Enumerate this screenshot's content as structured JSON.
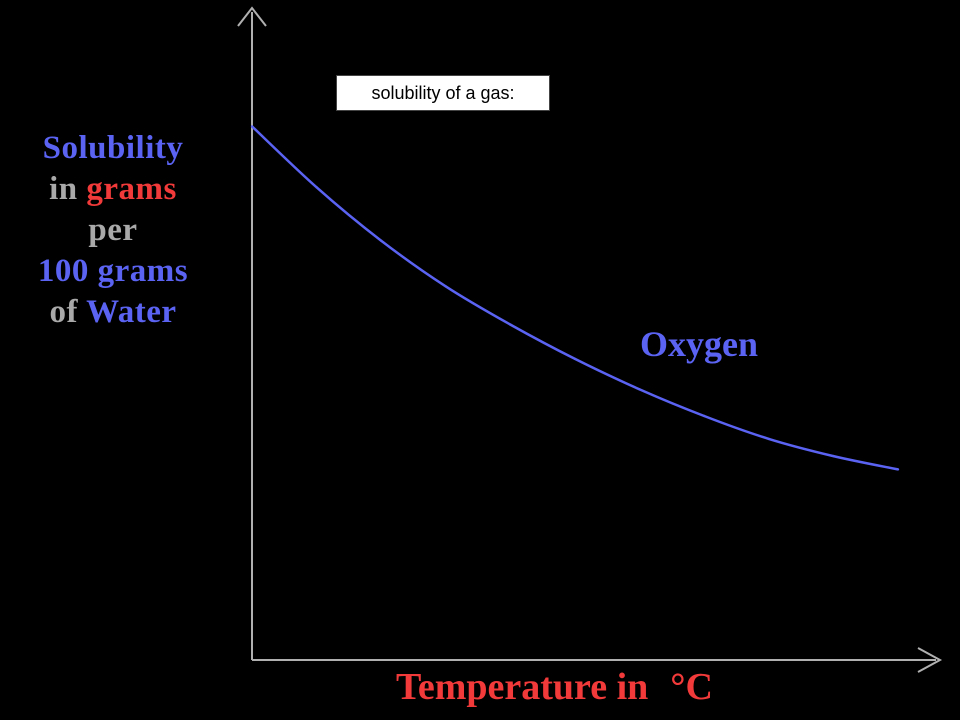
{
  "callout": {
    "text": "solubility of a gas:"
  },
  "chart_data": {
    "type": "line",
    "title": "",
    "ylabel_lines": [
      [
        {
          "text": "Solubility",
          "color": "blue"
        }
      ],
      [
        {
          "text": "in ",
          "color": "gray"
        },
        {
          "text": "grams",
          "color": "red"
        }
      ],
      [
        {
          "text": "per",
          "color": "gray"
        }
      ],
      [
        {
          "text": "100 grams",
          "color": "blue"
        }
      ],
      [
        {
          "text": "of ",
          "color": "gray"
        },
        {
          "text": "Water",
          "color": "blue"
        }
      ]
    ],
    "xlabel": {
      "main": "Temperature in",
      "unit": "°C"
    },
    "series": [
      {
        "name": "Oxygen",
        "color": "#5a63f2",
        "x": [
          0,
          10,
          20,
          30,
          40,
          50,
          60,
          70,
          80,
          90,
          100
        ],
        "y": [
          100,
          84,
          70,
          58,
          48,
          39,
          31,
          24,
          18,
          13.5,
          10
        ]
      }
    ],
    "xlim": [
      0,
      100
    ],
    "ylim": [
      -40,
      130
    ],
    "grid": false,
    "axes_color": "#b0b0b0"
  }
}
